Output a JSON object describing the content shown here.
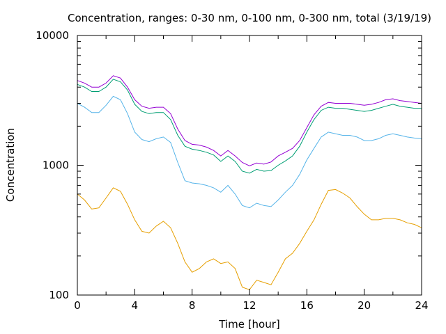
{
  "chart_data": {
    "type": "line",
    "title": "Concentration, ranges: 0-30 nm, 0-100 nm, 0-300 nm, total (3/19/19)",
    "xlabel": "Time [hour]",
    "ylabel": "Concentration",
    "xlim": [
      0,
      24
    ],
    "ylim": [
      100,
      10000
    ],
    "yscale": "log",
    "xticks": [
      0,
      4,
      8,
      12,
      16,
      20,
      24
    ],
    "xtick_labels": [
      "0",
      "4",
      "8",
      "12",
      "16",
      "20",
      "24"
    ],
    "yticks": [
      100,
      1000,
      10000
    ],
    "ytick_labels": [
      "100",
      "1000",
      "10000"
    ],
    "grid": false,
    "legend": "none",
    "series": [
      {
        "color": "#9400d3",
        "points": [
          [
            0,
            4500
          ],
          [
            0.5,
            4300
          ],
          [
            1,
            4000
          ],
          [
            1.5,
            4000
          ],
          [
            2,
            4300
          ],
          [
            2.5,
            4900
          ],
          [
            3,
            4700
          ],
          [
            3.5,
            4000
          ],
          [
            4,
            3200
          ],
          [
            4.5,
            2850
          ],
          [
            5,
            2750
          ],
          [
            5.5,
            2800
          ],
          [
            6,
            2800
          ],
          [
            6.5,
            2500
          ],
          [
            7,
            1900
          ],
          [
            7.5,
            1550
          ],
          [
            8,
            1450
          ],
          [
            8.5,
            1430
          ],
          [
            9,
            1380
          ],
          [
            9.5,
            1300
          ],
          [
            10,
            1180
          ],
          [
            10.5,
            1300
          ],
          [
            11,
            1180
          ],
          [
            11.5,
            1050
          ],
          [
            12,
            990
          ],
          [
            12.5,
            1040
          ],
          [
            13,
            1020
          ],
          [
            13.5,
            1060
          ],
          [
            14,
            1180
          ],
          [
            14.5,
            1260
          ],
          [
            15,
            1350
          ],
          [
            15.5,
            1550
          ],
          [
            16,
            1950
          ],
          [
            16.5,
            2450
          ],
          [
            17,
            2850
          ],
          [
            17.5,
            3050
          ],
          [
            18,
            3000
          ],
          [
            18.5,
            3000
          ],
          [
            19,
            3000
          ],
          [
            19.5,
            2950
          ],
          [
            20,
            2900
          ],
          [
            20.5,
            2950
          ],
          [
            21,
            3050
          ],
          [
            21.5,
            3200
          ],
          [
            22,
            3250
          ],
          [
            22.5,
            3150
          ],
          [
            23,
            3100
          ],
          [
            23.5,
            3050
          ],
          [
            24,
            3000
          ]
        ]
      },
      {
        "color": "#009e73",
        "points": [
          [
            0,
            4200
          ],
          [
            0.5,
            4000
          ],
          [
            1,
            3700
          ],
          [
            1.5,
            3700
          ],
          [
            2,
            4000
          ],
          [
            2.5,
            4600
          ],
          [
            3,
            4400
          ],
          [
            3.5,
            3800
          ],
          [
            4,
            2950
          ],
          [
            4.5,
            2600
          ],
          [
            5,
            2500
          ],
          [
            5.5,
            2550
          ],
          [
            6,
            2550
          ],
          [
            6.5,
            2250
          ],
          [
            7,
            1700
          ],
          [
            7.5,
            1400
          ],
          [
            8,
            1330
          ],
          [
            8.5,
            1300
          ],
          [
            9,
            1260
          ],
          [
            9.5,
            1200
          ],
          [
            10,
            1070
          ],
          [
            10.5,
            1180
          ],
          [
            11,
            1070
          ],
          [
            11.5,
            900
          ],
          [
            12,
            870
          ],
          [
            12.5,
            930
          ],
          [
            13,
            900
          ],
          [
            13.5,
            910
          ],
          [
            14,
            1000
          ],
          [
            14.5,
            1080
          ],
          [
            15,
            1180
          ],
          [
            15.5,
            1400
          ],
          [
            16,
            1800
          ],
          [
            16.5,
            2250
          ],
          [
            17,
            2650
          ],
          [
            17.5,
            2800
          ],
          [
            18,
            2750
          ],
          [
            18.5,
            2750
          ],
          [
            19,
            2700
          ],
          [
            19.5,
            2650
          ],
          [
            20,
            2600
          ],
          [
            20.5,
            2650
          ],
          [
            21,
            2750
          ],
          [
            21.5,
            2850
          ],
          [
            22,
            2950
          ],
          [
            22.5,
            2850
          ],
          [
            23,
            2800
          ],
          [
            23.5,
            2750
          ],
          [
            24,
            2750
          ]
        ]
      },
      {
        "color": "#56b4e9",
        "points": [
          [
            0,
            3000
          ],
          [
            0.5,
            2800
          ],
          [
            1,
            2550
          ],
          [
            1.5,
            2550
          ],
          [
            2,
            2900
          ],
          [
            2.5,
            3400
          ],
          [
            3,
            3200
          ],
          [
            3.5,
            2500
          ],
          [
            4,
            1800
          ],
          [
            4.5,
            1580
          ],
          [
            5,
            1520
          ],
          [
            5.5,
            1600
          ],
          [
            6,
            1650
          ],
          [
            6.5,
            1500
          ],
          [
            7,
            1050
          ],
          [
            7.5,
            760
          ],
          [
            8,
            730
          ],
          [
            8.5,
            720
          ],
          [
            9,
            700
          ],
          [
            9.5,
            670
          ],
          [
            10,
            620
          ],
          [
            10.5,
            700
          ],
          [
            11,
            600
          ],
          [
            11.5,
            490
          ],
          [
            12,
            470
          ],
          [
            12.5,
            510
          ],
          [
            13,
            490
          ],
          [
            13.5,
            480
          ],
          [
            14,
            540
          ],
          [
            14.5,
            620
          ],
          [
            15,
            700
          ],
          [
            15.5,
            850
          ],
          [
            16,
            1100
          ],
          [
            16.5,
            1350
          ],
          [
            17,
            1650
          ],
          [
            17.5,
            1800
          ],
          [
            18,
            1750
          ],
          [
            18.5,
            1700
          ],
          [
            19,
            1700
          ],
          [
            19.5,
            1650
          ],
          [
            20,
            1550
          ],
          [
            20.5,
            1550
          ],
          [
            21,
            1600
          ],
          [
            21.5,
            1700
          ],
          [
            22,
            1750
          ],
          [
            22.5,
            1700
          ],
          [
            23,
            1650
          ],
          [
            23.5,
            1620
          ],
          [
            24,
            1600
          ]
        ]
      },
      {
        "color": "#e69f00",
        "points": [
          [
            0,
            600
          ],
          [
            0.5,
            540
          ],
          [
            1,
            460
          ],
          [
            1.5,
            470
          ],
          [
            2,
            560
          ],
          [
            2.5,
            670
          ],
          [
            3,
            630
          ],
          [
            3.5,
            500
          ],
          [
            4,
            380
          ],
          [
            4.5,
            310
          ],
          [
            5,
            300
          ],
          [
            5.5,
            340
          ],
          [
            6,
            370
          ],
          [
            6.5,
            330
          ],
          [
            7,
            250
          ],
          [
            7.5,
            180
          ],
          [
            8,
            150
          ],
          [
            8.5,
            160
          ],
          [
            9,
            180
          ],
          [
            9.5,
            190
          ],
          [
            10,
            175
          ],
          [
            10.5,
            180
          ],
          [
            11,
            160
          ],
          [
            11.5,
            115
          ],
          [
            12,
            110
          ],
          [
            12.5,
            130
          ],
          [
            13,
            125
          ],
          [
            13.5,
            120
          ],
          [
            14,
            150
          ],
          [
            14.5,
            190
          ],
          [
            15,
            210
          ],
          [
            15.5,
            250
          ],
          [
            16,
            310
          ],
          [
            16.5,
            380
          ],
          [
            17,
            500
          ],
          [
            17.5,
            640
          ],
          [
            18,
            650
          ],
          [
            18.5,
            610
          ],
          [
            19,
            560
          ],
          [
            19.5,
            480
          ],
          [
            20,
            420
          ],
          [
            20.5,
            380
          ],
          [
            21,
            380
          ],
          [
            21.5,
            390
          ],
          [
            22,
            390
          ],
          [
            22.5,
            380
          ],
          [
            23,
            360
          ],
          [
            23.5,
            350
          ],
          [
            24,
            330
          ]
        ]
      }
    ]
  }
}
